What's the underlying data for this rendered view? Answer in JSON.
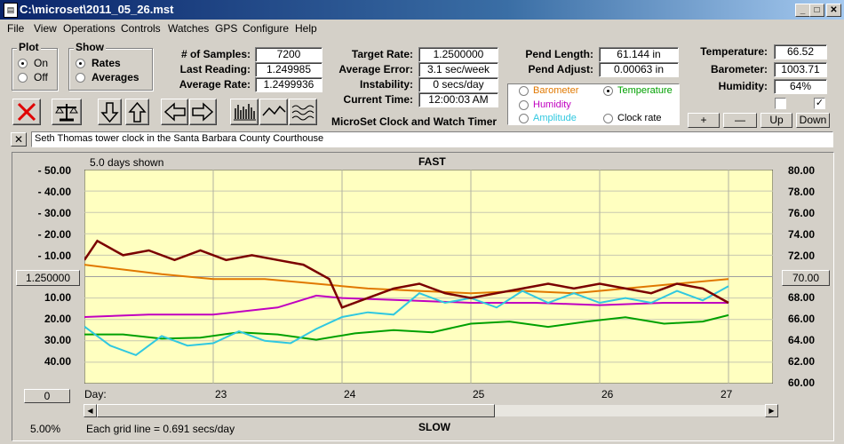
{
  "window": {
    "title": "C:\\microset\\2011_05_26.mst",
    "minimize": "_",
    "maximize": "□",
    "close": "✕"
  },
  "menu": [
    "File",
    "View",
    "Operations",
    "Controls",
    "Watches",
    "GPS",
    "Configure",
    "Help"
  ],
  "plot_group": {
    "title": "Plot",
    "options": [
      "On",
      "Off"
    ],
    "selected": 0
  },
  "show_group": {
    "title": "Show",
    "options": [
      "Rates",
      "Averages"
    ],
    "selected": 0
  },
  "stats": [
    {
      "label": "# of Samples:",
      "value": "7200"
    },
    {
      "label": "Last Reading:",
      "value": "1.249985"
    },
    {
      "label": "Average Rate:",
      "value": "1.2499936"
    }
  ],
  "rates": [
    {
      "label": "Target Rate:",
      "value": "1.2500000"
    },
    {
      "label": "Average Error:",
      "value": "3.1 sec/week"
    },
    {
      "label": "Instability:",
      "value": "0 secs/day"
    },
    {
      "label": "Current Time:",
      "value": "12:00:03 AM"
    }
  ],
  "pend": [
    {
      "label": "Pend Length:",
      "value": "61.144 in"
    },
    {
      "label": "Pend Adjust:",
      "value": "0.00063 in"
    }
  ],
  "env": [
    {
      "label": "Temperature:",
      "value": "66.52"
    },
    {
      "label": "Barometer:",
      "value": "1003.71"
    },
    {
      "label": "Humidity:",
      "value": "64%"
    }
  ],
  "app_caption": "MicroSet Clock and Watch Timer",
  "legend": {
    "items": [
      {
        "label": "Barometer",
        "color": "#e07800",
        "selected": false
      },
      {
        "label": "Temperature",
        "color": "#00a000",
        "selected": true
      },
      {
        "label": "Humidity",
        "color": "#c000c0",
        "selected": false
      },
      {
        "label": "Amplitude",
        "color": "#30c8e0",
        "selected": false
      },
      {
        "label": "Clock rate",
        "color": "#000000",
        "selected": false
      }
    ]
  },
  "checkboxes": [
    {
      "checked": false
    },
    {
      "checked": true
    }
  ],
  "adjust_buttons": [
    "+",
    "—",
    "Up",
    "Down"
  ],
  "description": "Seth Thomas tower clock in the Santa Barbara County Courthouse",
  "description_close": "✕",
  "chart": {
    "days_shown": "5.0 days shown",
    "top_label": "FAST",
    "bottom_label": "SLOW",
    "center_value": "1.250000",
    "right_center_value": "70.00",
    "offset_button": "0",
    "percent": "5.00%",
    "grid_note": "Each grid line = 0.691 secs/day",
    "x_prefix": "Day:",
    "left_ticks": [
      "- 50.00",
      "- 40.00",
      "- 30.00",
      "- 20.00",
      "- 10.00",
      "10.00",
      "20.00",
      "30.00",
      "40.00"
    ],
    "right_ticks": [
      "80.00",
      "78.00",
      "76.00",
      "74.00",
      "72.00",
      "68.00",
      "66.00",
      "64.00",
      "62.00",
      "60.00"
    ],
    "x_ticks": [
      "23",
      "24",
      "25",
      "26",
      "27"
    ]
  },
  "chart_data": {
    "type": "line",
    "x_label": "Day:",
    "x_ticks": [
      23,
      24,
      25,
      26,
      27
    ],
    "x_range": [
      22,
      27
    ],
    "y_left_range": [
      -50,
      40
    ],
    "y_right_range": [
      60,
      80
    ],
    "series": [
      {
        "name": "Temperature",
        "color": "#00a000",
        "x": [
          22,
          22.3,
          22.6,
          22.9,
          23.2,
          23.5,
          23.8,
          24.1,
          24.4,
          24.7,
          25.0,
          25.3,
          25.6,
          25.9,
          26.2,
          26.5,
          26.8,
          27
        ],
        "values": [
          64.6,
          64.6,
          64.2,
          64.3,
          64.8,
          64.6,
          64.1,
          64.7,
          65.0,
          64.8,
          65.6,
          65.8,
          65.3,
          65.8,
          66.2,
          65.6,
          65.8,
          66.4
        ]
      },
      {
        "name": "Humidity",
        "color": "#c000c0",
        "x": [
          22,
          22.5,
          23,
          23.5,
          23.8,
          24.0,
          24.5,
          25,
          25.5,
          26,
          26.5,
          27
        ],
        "values": [
          22,
          21,
          21,
          18,
          13,
          14,
          15,
          16,
          16,
          17,
          16,
          16
        ]
      },
      {
        "name": "Barometer",
        "color": "#e07800",
        "x": [
          22,
          22.3,
          22.6,
          23,
          23.4,
          23.8,
          24.2,
          24.6,
          25,
          25.4,
          25.8,
          26.2,
          26.6,
          27
        ],
        "values": [
          0,
          2,
          4,
          6,
          6,
          8,
          10,
          11,
          12,
          11,
          12,
          10,
          8,
          6
        ]
      },
      {
        "name": "Amplitude",
        "color": "#30c8e0",
        "x": [
          22,
          22.2,
          22.4,
          22.6,
          22.8,
          23,
          23.2,
          23.4,
          23.6,
          23.8,
          24,
          24.2,
          24.4,
          24.6,
          24.8,
          25,
          25.2,
          25.4,
          25.6,
          25.8,
          26,
          26.2,
          26.4,
          26.6,
          26.8,
          27
        ],
        "values": [
          26,
          34,
          38,
          30,
          34,
          33,
          28,
          32,
          33,
          27,
          22,
          20,
          21,
          12,
          16,
          14,
          18,
          11,
          16,
          12,
          16,
          14,
          16,
          11,
          15,
          9
        ]
      },
      {
        "name": "Clock rate",
        "color": "#7a0000",
        "x": [
          22,
          22.1,
          22.3,
          22.5,
          22.7,
          22.9,
          23.1,
          23.3,
          23.5,
          23.7,
          23.9,
          24.0,
          24.2,
          24.4,
          24.6,
          24.8,
          25.0,
          25.2,
          25.4,
          25.6,
          25.8,
          26.0,
          26.2,
          26.4,
          26.6,
          26.8,
          27
        ],
        "values": [
          -2,
          -10,
          -4,
          -6,
          -2,
          -6,
          -2,
          -4,
          -2,
          0,
          6,
          18,
          14,
          10,
          8,
          12,
          14,
          12,
          10,
          8,
          10,
          8,
          10,
          12,
          8,
          10,
          16
        ]
      }
    ]
  }
}
